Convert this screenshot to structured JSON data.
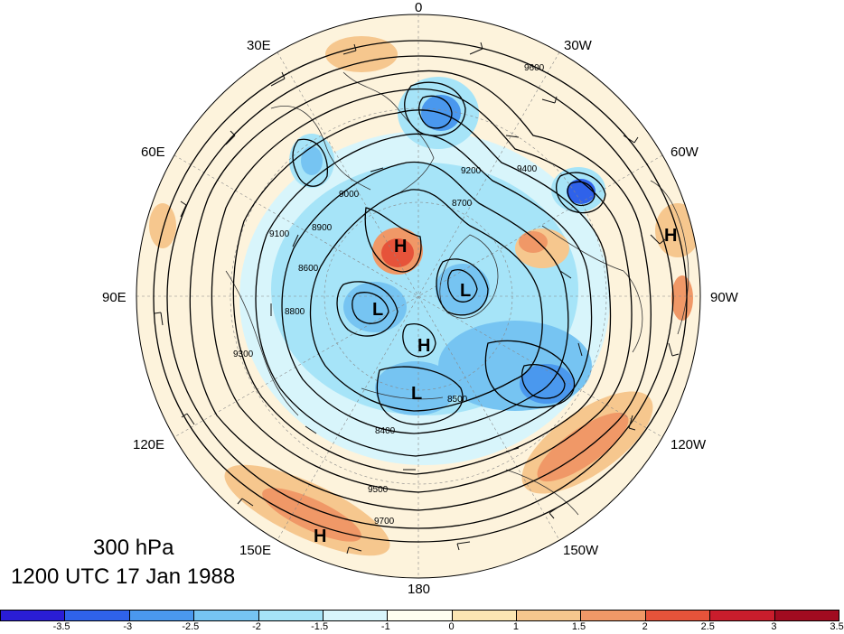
{
  "map": {
    "level_label": "300 hPa",
    "time_label": "1200 UTC 17 Jan 1988",
    "longitude_labels": [
      {
        "text": "0"
      },
      {
        "text": "30W"
      },
      {
        "text": "60W"
      },
      {
        "text": "90W"
      },
      {
        "text": "120W"
      },
      {
        "text": "150W"
      },
      {
        "text": "180"
      },
      {
        "text": "150E"
      },
      {
        "text": "120E"
      },
      {
        "text": "90E"
      },
      {
        "text": "60E"
      },
      {
        "text": "30E"
      }
    ],
    "pressure_centers": [
      {
        "type": "H",
        "region": "Greenland"
      },
      {
        "type": "H",
        "region": "eastern Siberia"
      },
      {
        "type": "H",
        "region": "Canada"
      },
      {
        "type": "H",
        "region": "North Pacific"
      },
      {
        "type": "L",
        "region": "Arctic / Hudson Bay"
      },
      {
        "type": "L",
        "region": "western Siberia"
      },
      {
        "type": "L",
        "region": "eastern Siberia"
      }
    ],
    "contour_labels": [
      "8400",
      "8500",
      "8600",
      "8700",
      "8800",
      "8900",
      "9000",
      "9100",
      "9200",
      "9300",
      "9400",
      "9500",
      "9600",
      "9700"
    ],
    "colorbar": {
      "ticks": [
        "-3.5",
        "-3",
        "-2.5",
        "-2",
        "-1.5",
        "-1",
        "0",
        "1",
        "1.5",
        "2",
        "2.5",
        "3",
        "3.5"
      ],
      "colors": [
        "#2a1dd6",
        "#2f62ea",
        "#4a98ee",
        "#76c4f2",
        "#a6e4f8",
        "#d8f5fb",
        "#fffff0",
        "#fbe6b3",
        "#f6c78e",
        "#f09867",
        "#e6533a",
        "#c91d2c",
        "#a10b20"
      ]
    }
  }
}
